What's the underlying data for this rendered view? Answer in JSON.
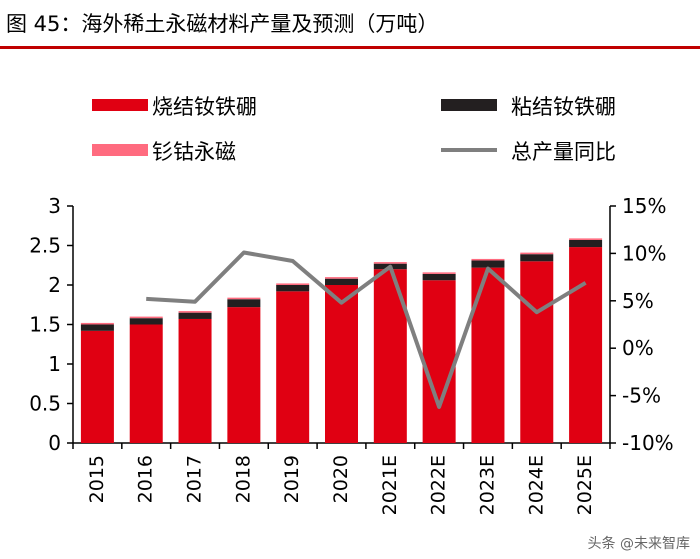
{
  "title": "图 45：海外稀土永磁材料产量及预测（万吨）",
  "watermark": "头条 @未来智库",
  "chart_data": {
    "type": "bar",
    "stacked": true,
    "categories": [
      "2015",
      "2016",
      "2017",
      "2018",
      "2019",
      "2020",
      "2021E",
      "2022E",
      "2023E",
      "2024E",
      "2025E"
    ],
    "series": [
      {
        "name": "烧结钕铁硼",
        "color": "#e00012",
        "values": [
          1.42,
          1.5,
          1.57,
          1.72,
          1.92,
          2.0,
          2.2,
          2.06,
          2.22,
          2.3,
          2.48
        ]
      },
      {
        "name": "粘结钕铁硼",
        "color": "#231f20",
        "values": [
          0.08,
          0.08,
          0.08,
          0.1,
          0.08,
          0.08,
          0.07,
          0.08,
          0.09,
          0.09,
          0.09
        ]
      },
      {
        "name": "钐钴永磁",
        "color": "#ff6b7f",
        "values": [
          0.02,
          0.02,
          0.02,
          0.02,
          0.02,
          0.02,
          0.02,
          0.02,
          0.02,
          0.02,
          0.02
        ]
      }
    ],
    "line_series": {
      "name": "总产量同比",
      "color": "#7f7f7f",
      "axis": "right",
      "values": [
        null,
        5.2,
        4.9,
        10.1,
        9.2,
        4.8,
        8.6,
        -6.2,
        8.4,
        3.8,
        6.9
      ]
    },
    "left_axis": {
      "min": 0,
      "max": 3,
      "ticks": [
        "0",
        "0.5",
        "1",
        "1.5",
        "2",
        "2.5",
        "3"
      ],
      "tick_values": [
        0,
        0.5,
        1,
        1.5,
        2,
        2.5,
        3
      ]
    },
    "right_axis": {
      "min": -10,
      "max": 15,
      "ticks": [
        "-10%",
        "-5%",
        "0%",
        "5%",
        "10%",
        "15%"
      ],
      "tick_values": [
        -10,
        -5,
        0,
        5,
        10,
        15
      ]
    },
    "legend": {
      "items": [
        {
          "label": "烧结钕铁硼",
          "color": "#e00012",
          "kind": "bar"
        },
        {
          "label": "粘结钕铁硼",
          "color": "#231f20",
          "kind": "bar"
        },
        {
          "label": "钐钴永磁",
          "color": "#ff6b7f",
          "kind": "bar"
        },
        {
          "label": "总产量同比",
          "color": "#7f7f7f",
          "kind": "line"
        }
      ],
      "position": "top"
    }
  }
}
